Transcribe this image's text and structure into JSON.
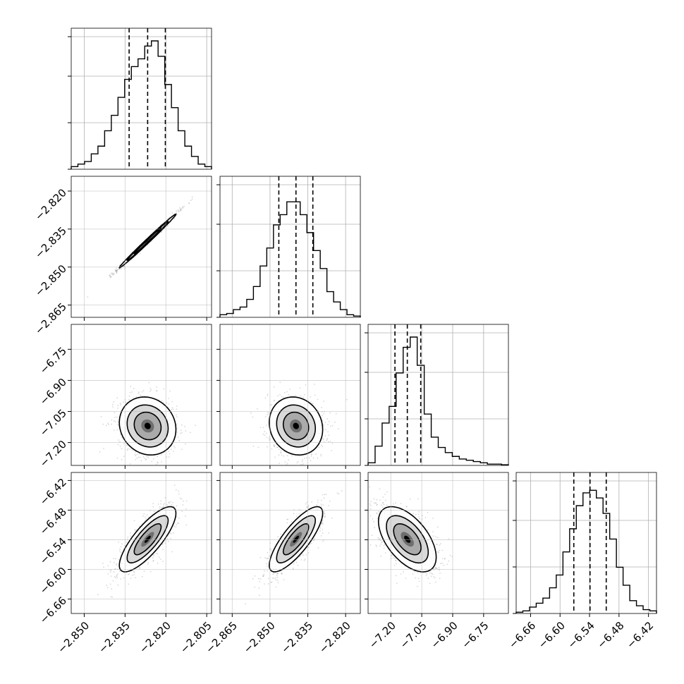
{
  "chart_data": {
    "type": "corner",
    "parameters": 4,
    "ranges": [
      [
        -2.854,
        -2.804
      ],
      [
        -2.869,
        -2.815
      ],
      [
        -7.3,
        -6.64
      ],
      [
        -6.685,
        -6.408
      ]
    ],
    "ticks": [
      [
        -2.85,
        -2.835,
        -2.82,
        -2.805
      ],
      [
        -2.865,
        -2.85,
        -2.835,
        -2.82
      ],
      [
        -7.2,
        -7.05,
        -6.9,
        -6.75
      ],
      [
        -6.66,
        -6.6,
        -6.54,
        -6.48,
        -6.42
      ]
    ],
    "tick_labels": [
      [
        "−2.850",
        "−2.835",
        "−2.820",
        "−2.805"
      ],
      [
        "−2.865",
        "−2.850",
        "−2.835",
        "−2.820"
      ],
      [
        "−7.20",
        "−7.05",
        "−6.90",
        "−6.75"
      ],
      [
        "−6.66",
        "−6.60",
        "−6.54",
        "−6.48",
        "−6.42"
      ]
    ],
    "quantiles": [
      [
        -2.8335,
        -2.8267,
        -2.8202
      ],
      [
        -2.8465,
        -2.8397,
        -2.833
      ],
      [
        -7.18,
        -7.12,
        -7.055
      ],
      [
        -6.572,
        -6.539,
        -6.506
      ]
    ],
    "histograms": [
      [
        0.02,
        0.04,
        0.06,
        0.12,
        0.18,
        0.3,
        0.42,
        0.56,
        0.7,
        0.8,
        0.86,
        0.96,
        1.0,
        0.88,
        0.66,
        0.48,
        0.3,
        0.18,
        0.1,
        0.04,
        0.02
      ],
      [
        0.02,
        0.03,
        0.06,
        0.08,
        0.14,
        0.24,
        0.4,
        0.54,
        0.72,
        0.8,
        0.9,
        0.9,
        0.8,
        0.66,
        0.52,
        0.38,
        0.2,
        0.12,
        0.06,
        0.02,
        0.01
      ],
      [
        0.02,
        0.15,
        0.33,
        0.46,
        0.72,
        0.92,
        1.0,
        0.78,
        0.4,
        0.22,
        0.14,
        0.1,
        0.07,
        0.05,
        0.04,
        0.03,
        0.02,
        0.01,
        0.01,
        0.005
      ],
      [
        0.01,
        0.02,
        0.05,
        0.08,
        0.12,
        0.2,
        0.3,
        0.48,
        0.66,
        0.84,
        0.94,
        0.96,
        0.9,
        0.78,
        0.58,
        0.36,
        0.22,
        0.1,
        0.06,
        0.03,
        0.02
      ]
    ],
    "pairs": [
      {
        "row": 1,
        "col": 0,
        "cx": -2.8267,
        "cy": -2.8397,
        "sx": 0.0052,
        "sy": 0.0053,
        "rho": 0.995
      },
      {
        "row": 2,
        "col": 0,
        "cx": -2.8267,
        "cy": -7.12,
        "sx": 0.0052,
        "sy": 0.07,
        "rho": -0.12
      },
      {
        "row": 2,
        "col": 1,
        "cx": -2.8397,
        "cy": -7.12,
        "sx": 0.0053,
        "sy": 0.07,
        "rho": -0.12
      },
      {
        "row": 3,
        "col": 0,
        "cx": -2.8267,
        "cy": -6.539,
        "sx": 0.0052,
        "sy": 0.033,
        "rho": 0.8
      },
      {
        "row": 3,
        "col": 1,
        "cx": -2.8397,
        "cy": -6.539,
        "sx": 0.0053,
        "sy": 0.033,
        "rho": 0.8
      },
      {
        "row": 3,
        "col": 2,
        "cx": -7.12,
        "cy": -6.539,
        "sx": 0.07,
        "sy": 0.033,
        "rho": -0.55
      }
    ],
    "grid": true,
    "colors": {
      "line": "#000000",
      "grid": "#b0b0b0",
      "scatter": "#909090"
    }
  }
}
